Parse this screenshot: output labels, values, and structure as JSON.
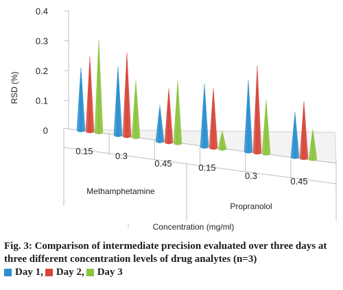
{
  "chart_data": {
    "type": "bar",
    "style": "3d-cone",
    "ylabel": "RSD (%)",
    "xlabel": "Concentration (mg/ml)",
    "ylim": [
      0,
      0.4
    ],
    "yticks": [
      "0",
      "0.1",
      "0.2",
      "0.3",
      "0.4"
    ],
    "groups": [
      "Methamphetamine",
      "Propranolol"
    ],
    "categories": [
      "0.15",
      "0.3",
      "0.45",
      "0.15",
      "0.3",
      "0.45"
    ],
    "series": [
      {
        "name": "Day 1",
        "color": "#2b8fd0",
        "values": [
          0.21,
          0.23,
          0.12,
          0.21,
          0.24,
          0.15
        ]
      },
      {
        "name": "Day 2",
        "color": "#d8473b",
        "values": [
          0.25,
          0.28,
          0.18,
          0.2,
          0.29,
          0.19
        ]
      },
      {
        "name": "Day 3",
        "color": "#8cc43f",
        "values": [
          0.31,
          0.19,
          0.21,
          0.06,
          0.18,
          0.1
        ]
      }
    ]
  },
  "caption": {
    "text": "Fig. 3: Comparison of intermediate precision evaluated over three days at three different concentration levels of drug analytes (n=3)",
    "legend": [
      {
        "label": "Day 1,",
        "color": "#2b8fd0"
      },
      {
        "label": "Day 2,",
        "color": "#d8473b"
      },
      {
        "label": "Day 3",
        "color": "#8cc43f"
      }
    ]
  }
}
